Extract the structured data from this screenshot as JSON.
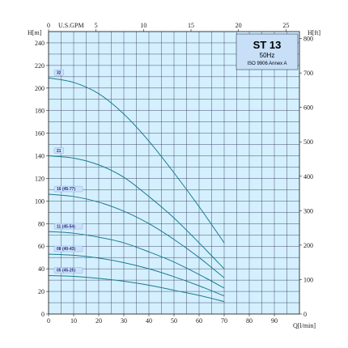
{
  "chart_data": {
    "type": "line",
    "title": "ST 13",
    "subtitle": "50Hz",
    "note": "ISO 9906 Annex A",
    "x_bottom": {
      "label": "Q[l/min]",
      "ticks": [
        "0",
        "10",
        "20",
        "30",
        "40",
        "50",
        "60",
        "70",
        "80",
        "90"
      ],
      "range": [
        0,
        100
      ]
    },
    "x_top": {
      "label": "U.S.GPM",
      "ticks": [
        "0",
        "5",
        "10",
        "15",
        "20",
        "25"
      ],
      "range": [
        0,
        26.42
      ]
    },
    "y_left": {
      "label": "H[m]",
      "ticks": [
        "0",
        "20",
        "40",
        "60",
        "80",
        "100",
        "120",
        "140",
        "160",
        "180",
        "200",
        "220",
        "240"
      ],
      "range": [
        0,
        250
      ]
    },
    "y_right": {
      "label": "H[ft]",
      "ticks": [
        "0",
        "100",
        "200",
        "300",
        "400",
        "500",
        "600",
        "700",
        "800"
      ],
      "range": [
        0,
        820.2
      ]
    },
    "grid": true,
    "series": [
      {
        "name": "32",
        "x": [
          0,
          10,
          20,
          30,
          40,
          50,
          60,
          70
        ],
        "values": [
          209,
          205,
          195,
          177,
          153,
          125,
          95,
          63
        ]
      },
      {
        "name": "21",
        "x": [
          0,
          10,
          20,
          30,
          40,
          50,
          60,
          70
        ],
        "values": [
          140,
          138,
          132,
          121,
          104,
          85,
          63,
          40
        ]
      },
      {
        "name": "16 (45-77)",
        "x": [
          0,
          10,
          20,
          30,
          40,
          50,
          60,
          70
        ],
        "values": [
          106,
          104,
          99,
          91,
          80,
          66,
          50,
          32
        ]
      },
      {
        "name": "11 (45-54)",
        "x": [
          0,
          10,
          20,
          30,
          40,
          50,
          60,
          70
        ],
        "values": [
          73,
          71.5,
          68,
          63,
          55,
          46,
          35,
          23
        ]
      },
      {
        "name": "08 (40-43)",
        "x": [
          0,
          10,
          20,
          30,
          40,
          50,
          60,
          70
        ],
        "values": [
          53,
          52,
          49.5,
          45.5,
          40,
          33,
          25,
          16
        ]
      },
      {
        "name": "05 (45-25)",
        "x": [
          0,
          10,
          20,
          30,
          40,
          50,
          60,
          70
        ],
        "values": [
          34,
          33.3,
          31.5,
          29,
          25.5,
          21,
          16.5,
          11
        ]
      }
    ],
    "colors": {
      "plot_bg": "#d4f0ff",
      "grid": "#3a3a5a",
      "curve": "#1c7a8e",
      "label_bg": "#c9e2fb",
      "label_text": "#2a2a7a"
    }
  }
}
